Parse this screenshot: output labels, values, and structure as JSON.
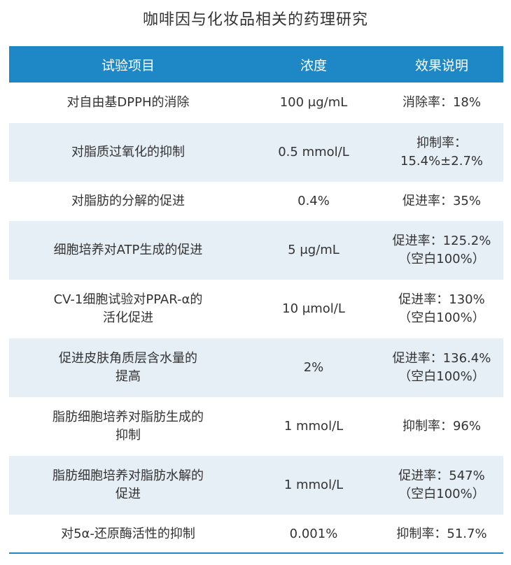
{
  "title": "咖啡因与化妆品相关的药理研究",
  "colors": {
    "header_bg": "#1e88c7",
    "row_alt_bg": "#e6eef6",
    "text": "#333333"
  },
  "table": {
    "headers": [
      "试验项目",
      "浓度",
      "效果说明"
    ],
    "rows": [
      [
        "对自由基DPPH的消除",
        "100 μg/mL",
        "消除率：18%"
      ],
      [
        "对脂质过氧化的抑制",
        "0.5 mmol/L",
        "抑制率：\n15.4%±2.7%"
      ],
      [
        "对脂肪的分解的促进",
        "0.4%",
        "促进率：35%"
      ],
      [
        "细胞培养对ATP生成的促进",
        "5 μg/mL",
        "促进率：125.2%\n（空白100%）"
      ],
      [
        "CV-1细胞试验对PPAR-α的\n活化促进",
        "10 μmol/L",
        "促进率：130%\n（空白100%）"
      ],
      [
        "促进皮肤角质层含水量的\n提高",
        "2%",
        "促进率：136.4%\n（空白100%）"
      ],
      [
        "脂肪细胞培养对脂肪生成的\n抑制",
        "1 mmol/L",
        "抑制率：96%"
      ],
      [
        "脂肪细胞培养对脂肪水解的\n促进",
        "1 mmol/L",
        "促进率：547%\n（空白100%）"
      ],
      [
        "对5α-还原酶活性的抑制",
        "0.001%",
        "抑制率：51.7%"
      ]
    ]
  }
}
